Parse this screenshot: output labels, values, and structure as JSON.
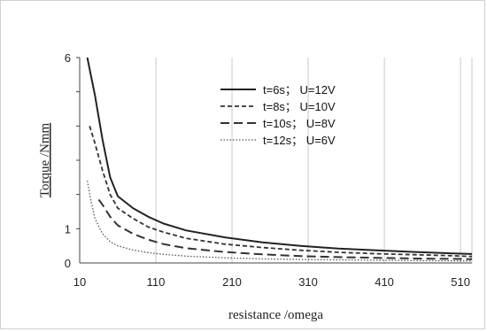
{
  "chart_data": {
    "type": "line",
    "xlabel": "resistance /omega",
    "ylabel": "Torque /Nmm",
    "xlim": [
      10,
      525
    ],
    "ylim": [
      0,
      6
    ],
    "x_ticks": [
      "10",
      "110",
      "210",
      "310",
      "410",
      "510"
    ],
    "y_ticks": [
      "0",
      "1",
      "6"
    ],
    "grid": "vertical",
    "legend": "top-right",
    "series": [
      {
        "name": "t=6s；  U=12V",
        "style": "solid",
        "color": "#222222",
        "x": [
          20,
          30,
          40,
          50,
          60,
          80,
          100,
          120,
          150,
          200,
          250,
          300,
          350,
          400,
          450,
          500,
          525
        ],
        "y": [
          6.0,
          4.9,
          3.6,
          2.5,
          1.95,
          1.6,
          1.35,
          1.15,
          0.95,
          0.75,
          0.6,
          0.5,
          0.42,
          0.37,
          0.32,
          0.28,
          0.26
        ]
      },
      {
        "name": "t=8s；  U=10V",
        "style": "dashed-short",
        "color": "#333333",
        "x": [
          23,
          30,
          40,
          50,
          60,
          80,
          100,
          120,
          150,
          200,
          250,
          300,
          350,
          400,
          450,
          500,
          525
        ],
        "y": [
          4.0,
          3.5,
          2.7,
          2.0,
          1.6,
          1.3,
          1.05,
          0.9,
          0.72,
          0.55,
          0.45,
          0.37,
          0.31,
          0.27,
          0.24,
          0.21,
          0.19
        ]
      },
      {
        "name": "t=10s；  U=8V",
        "style": "dashed-long",
        "color": "#333333",
        "x": [
          35,
          40,
          50,
          60,
          80,
          100,
          120,
          150,
          200,
          250,
          300,
          350,
          400,
          450,
          500,
          525
        ],
        "y": [
          1.85,
          1.7,
          1.35,
          1.1,
          0.85,
          0.68,
          0.55,
          0.43,
          0.32,
          0.25,
          0.2,
          0.17,
          0.15,
          0.13,
          0.12,
          0.11
        ]
      },
      {
        "name": "t=12s；  U=6V",
        "style": "dotted",
        "color": "#555555",
        "x": [
          20,
          25,
          30,
          40,
          50,
          60,
          80,
          100,
          120,
          150,
          200,
          250,
          300,
          400,
          500,
          525
        ],
        "y": [
          2.4,
          1.8,
          1.3,
          0.85,
          0.62,
          0.5,
          0.38,
          0.3,
          0.25,
          0.2,
          0.15,
          0.12,
          0.1,
          0.08,
          0.06,
          0.06
        ]
      }
    ]
  }
}
